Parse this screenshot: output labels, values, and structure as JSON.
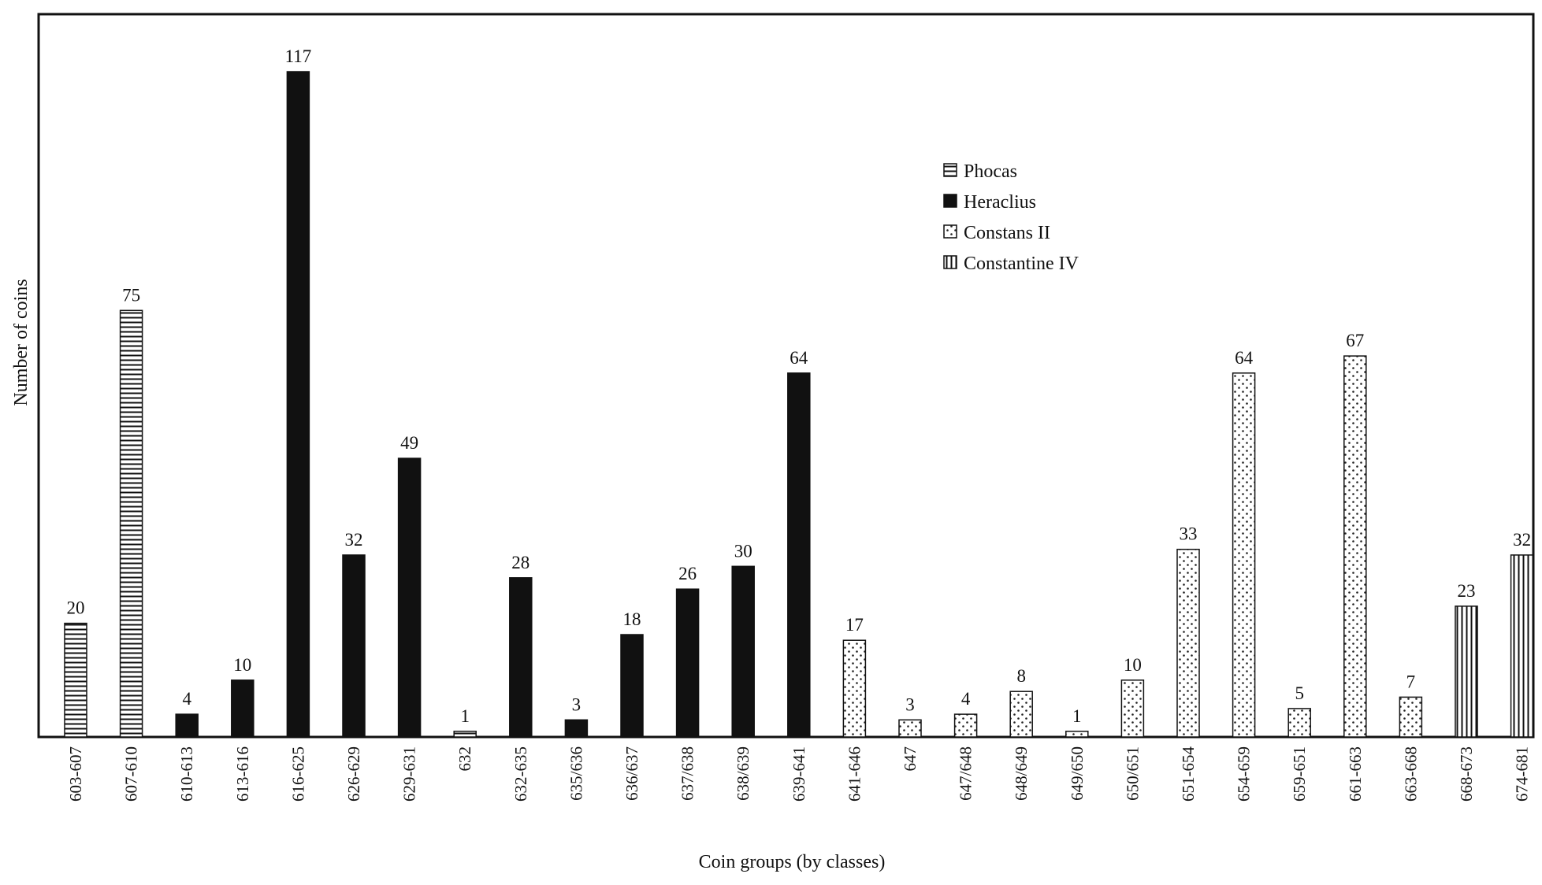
{
  "chart_data": {
    "type": "bar",
    "title": "",
    "xlabel": "Coin groups (by classes)",
    "ylabel": "Number of coins",
    "ylim": [
      0,
      117
    ],
    "grid": false,
    "legend_position": "top-center",
    "legend": [
      {
        "name": "Phocas",
        "pattern": "horizontal-lines"
      },
      {
        "name": "Heraclius",
        "pattern": "solid-black"
      },
      {
        "name": "Constans II",
        "pattern": "dots"
      },
      {
        "name": "Constantine IV",
        "pattern": "vertical-lines"
      }
    ],
    "bars": [
      {
        "category": "603-607",
        "value": 20,
        "series": "Phocas"
      },
      {
        "category": "607-610",
        "value": 75,
        "series": "Phocas"
      },
      {
        "category": "610-613",
        "value": 4,
        "series": "Heraclius"
      },
      {
        "category": "613-616",
        "value": 10,
        "series": "Heraclius"
      },
      {
        "category": "616-625",
        "value": 117,
        "series": "Heraclius"
      },
      {
        "category": "626-629",
        "value": 32,
        "series": "Heraclius"
      },
      {
        "category": "629-631",
        "value": 49,
        "series": "Heraclius"
      },
      {
        "category": "632",
        "value": 1,
        "series": "Phocas"
      },
      {
        "category": "632-635",
        "value": 28,
        "series": "Heraclius"
      },
      {
        "category": "635/636",
        "value": 3,
        "series": "Heraclius"
      },
      {
        "category": "636/637",
        "value": 18,
        "series": "Heraclius"
      },
      {
        "category": "637/638",
        "value": 26,
        "series": "Heraclius"
      },
      {
        "category": "638/639",
        "value": 30,
        "series": "Heraclius"
      },
      {
        "category": "639-641",
        "value": 64,
        "series": "Heraclius"
      },
      {
        "category": "641-646",
        "value": 17,
        "series": "Constans II"
      },
      {
        "category": "647",
        "value": 3,
        "series": "Constans II"
      },
      {
        "category": "647/648",
        "value": 4,
        "series": "Constans II"
      },
      {
        "category": "648/649",
        "value": 8,
        "series": "Constans II"
      },
      {
        "category": "649/650",
        "value": 1,
        "series": "Constans II"
      },
      {
        "category": "650/651",
        "value": 10,
        "series": "Constans II"
      },
      {
        "category": "651-654",
        "value": 33,
        "series": "Constans II"
      },
      {
        "category": "654-659",
        "value": 64,
        "series": "Constans II"
      },
      {
        "category": "659-651",
        "value": 5,
        "series": "Constans II"
      },
      {
        "category": "661-663",
        "value": 67,
        "series": "Constans II"
      },
      {
        "category": "663-668",
        "value": 7,
        "series": "Constans II"
      },
      {
        "category": "668-673",
        "value": 23,
        "series": "Constantine IV"
      },
      {
        "category": "674-681",
        "value": 32,
        "series": "Constantine IV"
      }
    ]
  }
}
